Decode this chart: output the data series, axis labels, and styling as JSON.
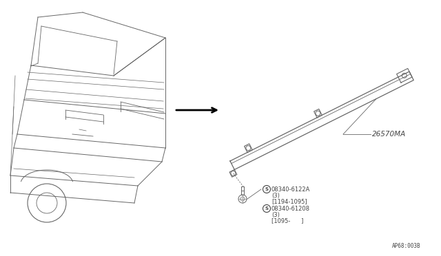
{
  "bg_color": "#ffffff",
  "line_color": "#666666",
  "text_color": "#444444",
  "fig_width": 6.4,
  "fig_height": 3.72,
  "dpi": 100,
  "part_label_26570MA": "26570MA",
  "part_label_1": "08340-6122A",
  "part_label_1_sub1": "(3)",
  "part_label_1_sub2": "[1194-1095]",
  "part_label_2": "08340-61208",
  "part_label_2_sub1": "(3)",
  "part_label_2_sub2": "[1095-      ]",
  "bottom_ref": "AP68:003B",
  "font_size_small": 6.0,
  "font_size_ref": 5.5
}
